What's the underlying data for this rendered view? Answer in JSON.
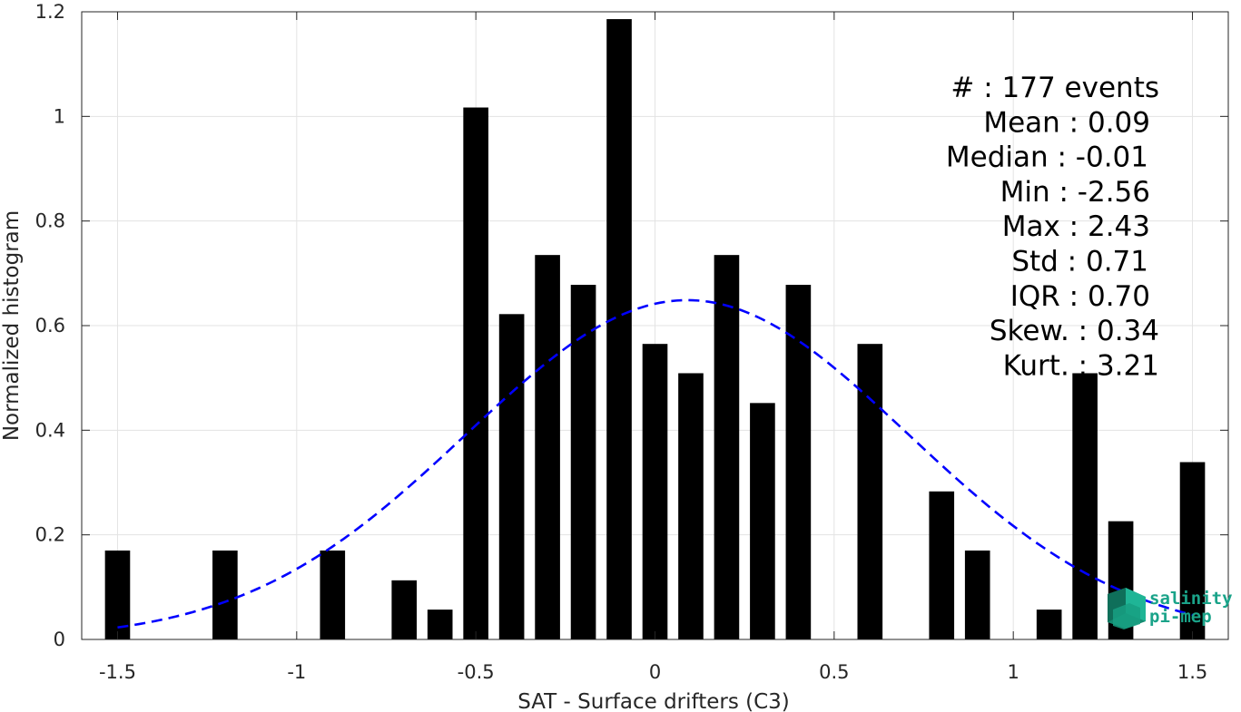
{
  "chart_data": {
    "type": "bar",
    "xlabel": "SAT - Surface drifters (C3)",
    "ylabel": "Normalized histogram",
    "xlim": [
      -1.6,
      1.6
    ],
    "ylim": [
      0,
      1.2
    ],
    "x_ticks": [
      -1.5,
      -1,
      -0.5,
      0,
      0.5,
      1,
      1.5
    ],
    "x_tick_labels": [
      "-1.5",
      "-1",
      "-0.5",
      "0",
      "0.5",
      "1",
      "1.5"
    ],
    "y_ticks": [
      0,
      0.2,
      0.4,
      0.6,
      0.8,
      1,
      1.2
    ],
    "y_tick_labels": [
      "0",
      "0.2",
      "0.4",
      "0.6",
      "0.8",
      "1",
      "1.2"
    ],
    "grid": true,
    "bar_width": 0.07,
    "bar_color": "#000000",
    "bars": [
      {
        "x": -1.5,
        "y": 0.17
      },
      {
        "x": -1.2,
        "y": 0.17
      },
      {
        "x": -0.9,
        "y": 0.17
      },
      {
        "x": -0.7,
        "y": 0.113
      },
      {
        "x": -0.6,
        "y": 0.057
      },
      {
        "x": -0.5,
        "y": 1.017
      },
      {
        "x": -0.4,
        "y": 0.622
      },
      {
        "x": -0.3,
        "y": 0.735
      },
      {
        "x": -0.2,
        "y": 0.678
      },
      {
        "x": -0.1,
        "y": 1.186
      },
      {
        "x": 0.0,
        "y": 0.565
      },
      {
        "x": 0.1,
        "y": 0.509
      },
      {
        "x": 0.2,
        "y": 0.735
      },
      {
        "x": 0.3,
        "y": 0.452
      },
      {
        "x": 0.4,
        "y": 0.678
      },
      {
        "x": 0.6,
        "y": 0.565
      },
      {
        "x": 0.8,
        "y": 0.283
      },
      {
        "x": 0.9,
        "y": 0.17
      },
      {
        "x": 1.1,
        "y": 0.057
      },
      {
        "x": 1.2,
        "y": 0.509
      },
      {
        "x": 1.3,
        "y": 0.226
      },
      {
        "x": 1.5,
        "y": 0.339
      }
    ],
    "fit_curve": {
      "style": "dashed",
      "color": "#0000ff",
      "mean": 0.09,
      "std": 0.615,
      "x_range": [
        -1.5,
        1.5
      ]
    },
    "stats": [
      "#  : 177 events",
      "Mean : 0.09",
      "Median : -0.01",
      "Min : -2.56",
      "Max : 2.43",
      "Std : 0.71",
      "IQR : 0.70",
      "Skew. : 0.34",
      "Kurt. : 3.21"
    ]
  },
  "logo": {
    "line1": "salinity",
    "line2": "pi-mep",
    "color": "#1aa389"
  }
}
